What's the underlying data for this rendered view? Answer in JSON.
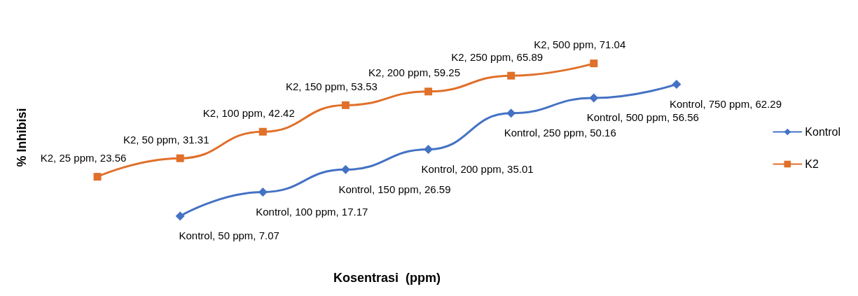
{
  "chart_data": {
    "type": "line",
    "xlabel": "Kosentrasi  (ppm)",
    "ylabel": "% Inhibisi",
    "categories": [
      null,
      null,
      null,
      null,
      null,
      null,
      null,
      null
    ],
    "tick_labels": false,
    "grid": false,
    "legend": "right",
    "series": [
      {
        "name": "Kontrol",
        "color": "#4472c4",
        "marker": "diamond",
        "values": [
          null,
          7.07,
          17.17,
          26.59,
          35.01,
          50.16,
          56.56,
          62.29
        ],
        "value_labels": [
          null,
          "Kontrol, 50 ppm, 7.07",
          "Kontrol, 100 ppm, 17.17",
          "Kontrol, 150 ppm, 26.59",
          "Kontrol, 200 ppm, 35.01",
          "Kontrol, 250 ppm, 50.16",
          "Kontrol, 500 ppm, 56.56",
          "Kontrol, 750 ppm, 62.29"
        ]
      },
      {
        "name": "K2",
        "color": "#e0702a",
        "marker": "square",
        "values": [
          23.56,
          31.31,
          42.42,
          53.53,
          59.25,
          65.89,
          71.04,
          null
        ],
        "value_labels": [
          "K2, 25 ppm, 23.56",
          "K2, 50 ppm, 31.31",
          "K2, 100 ppm, 42.42",
          "K2, 150 ppm, 53.53",
          "K2, 200 ppm, 59.25",
          "K2, 250 ppm, 65.89",
          "K2, 500 ppm, 71.04",
          null
        ]
      }
    ]
  }
}
